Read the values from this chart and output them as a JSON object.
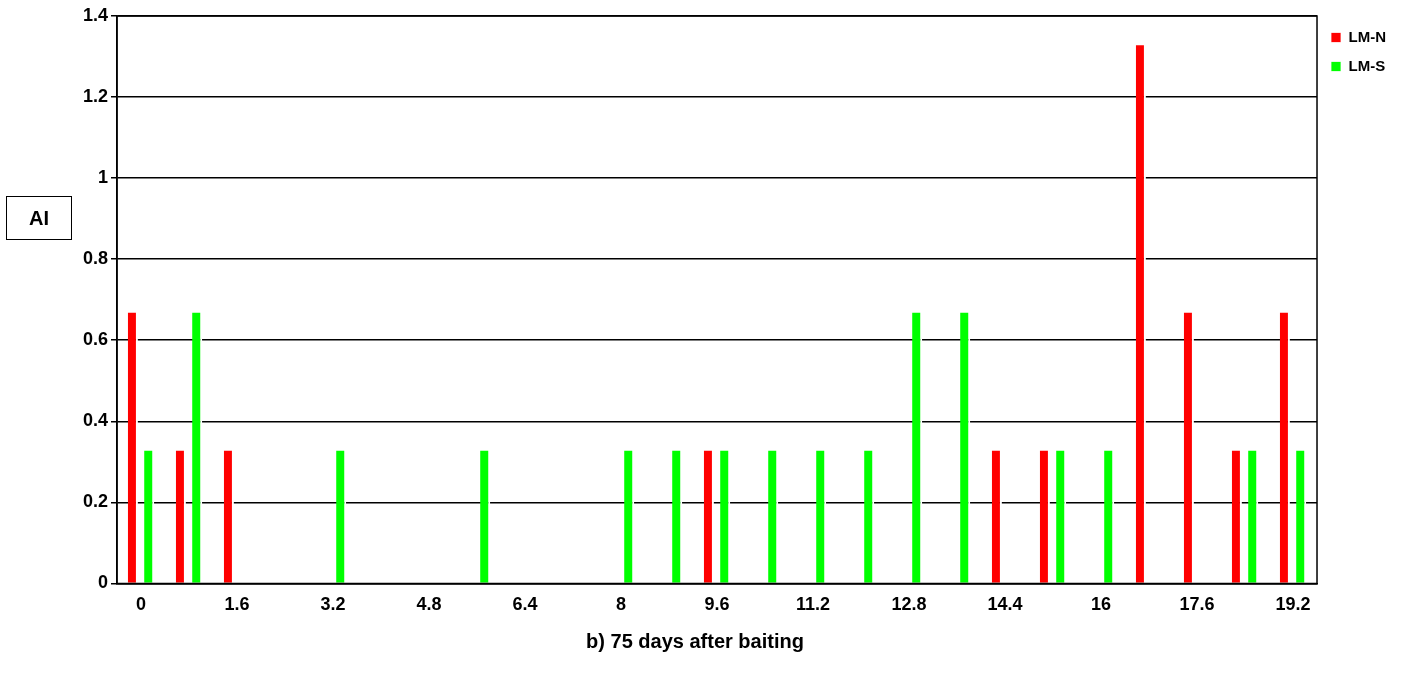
{
  "chart_data": {
    "type": "bar",
    "xlabel": "b) 75 days after baiting",
    "ylabel": "AI",
    "categories": [
      "0",
      null,
      "1.6",
      null,
      "3.2",
      null,
      "4.8",
      null,
      "6.4",
      null,
      "8",
      null,
      "9.6",
      null,
      "11.2",
      null,
      "12.8",
      null,
      "14.4",
      null,
      "16",
      null,
      "17.6",
      null,
      "19.2"
    ],
    "series": [
      {
        "name": "LM-N",
        "color": "#ff0000",
        "values": [
          0.67,
          0.33,
          0.33,
          0,
          0,
          0,
          0,
          0,
          0,
          0,
          0,
          0,
          0.33,
          0,
          0,
          0,
          0,
          0,
          0.33,
          0.33,
          0,
          1.33,
          0.67,
          0.33,
          0.67
        ]
      },
      {
        "name": "LM-S",
        "color": "#00ff00",
        "values": [
          0.33,
          0.67,
          0,
          0,
          0.33,
          0,
          0,
          0.33,
          0,
          0,
          0.33,
          0.33,
          0.33,
          0.33,
          0.33,
          0.33,
          0.67,
          0.67,
          0,
          0.33,
          0.33,
          0,
          0,
          0.33,
          0.33
        ]
      }
    ],
    "ylim": [
      0,
      1.4
    ],
    "yticks": [
      0,
      0.2,
      0.4,
      0.6,
      0.8,
      1,
      1.2,
      1.4
    ],
    "grid": "y",
    "legend": "top right"
  }
}
